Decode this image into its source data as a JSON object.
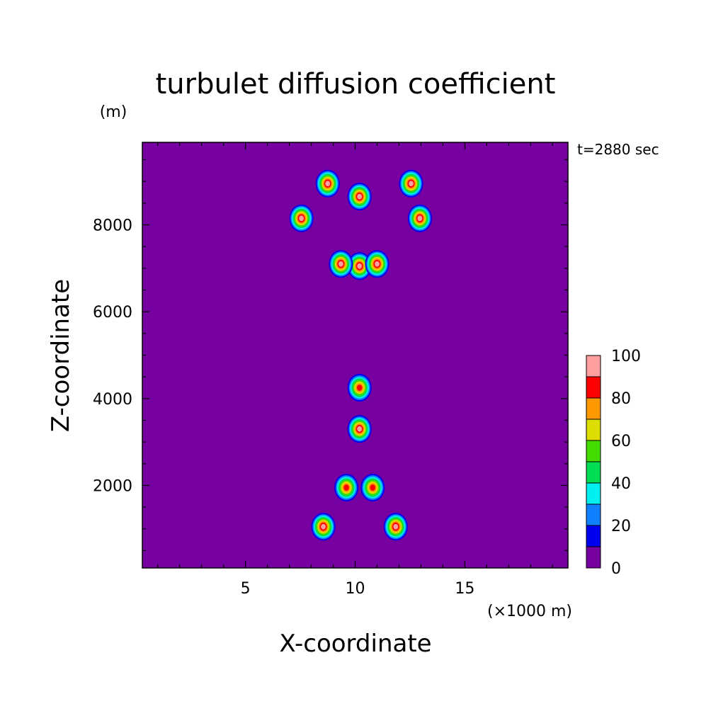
{
  "chart_data": {
    "type": "heatmap",
    "title": "turbulet diffusion coefficient",
    "ylabel_unit": "(m)",
    "ylabel": "Z-coordinate",
    "xlabel": "X-coordinate",
    "xunit": "(×1000 m)",
    "time_label": "t=2880 sec",
    "xlim": [
      0.3,
      19.7
    ],
    "ylim": [
      100,
      9900
    ],
    "xticks": [
      5,
      10,
      15
    ],
    "xtick_labels": [
      "5",
      "10",
      "15"
    ],
    "yticks": [
      2000,
      4000,
      6000,
      8000
    ],
    "ytick_labels": [
      "2000",
      "4000",
      "6000",
      "8000"
    ],
    "colorbar": {
      "levels": [
        0,
        10,
        20,
        30,
        40,
        50,
        60,
        70,
        80,
        90,
        100
      ],
      "labels": [
        "0",
        "20",
        "40",
        "60",
        "80",
        "100"
      ],
      "label_values": [
        0,
        20,
        40,
        60,
        80,
        100
      ],
      "colors": [
        "#7700a0",
        "#0000f0",
        "#1080ff",
        "#00f0f0",
        "#00dd55",
        "#44dd00",
        "#dddd00",
        "#ff9900",
        "#ff0000",
        "#ff9e9e"
      ]
    },
    "background_value": 5,
    "features": [
      {
        "x": 10.2,
        "z": 7050,
        "peak": 100
      },
      {
        "x": 9.35,
        "z": 7100,
        "peak": 95
      },
      {
        "x": 11.0,
        "z": 7100,
        "peak": 95
      },
      {
        "x": 8.75,
        "z": 8950,
        "peak": 95
      },
      {
        "x": 12.55,
        "z": 8950,
        "peak": 95
      },
      {
        "x": 7.55,
        "z": 8150,
        "peak": 90
      },
      {
        "x": 12.95,
        "z": 8150,
        "peak": 90
      },
      {
        "x": 10.2,
        "z": 8650,
        "peak": 92
      },
      {
        "x": 10.2,
        "z": 3300,
        "peak": 100
      },
      {
        "x": 10.2,
        "z": 4250,
        "peak": 85
      },
      {
        "x": 8.55,
        "z": 1050,
        "peak": 95
      },
      {
        "x": 11.85,
        "z": 1050,
        "peak": 95
      },
      {
        "x": 9.6,
        "z": 1950,
        "peak": 80
      },
      {
        "x": 10.8,
        "z": 1950,
        "peak": 80
      }
    ]
  }
}
